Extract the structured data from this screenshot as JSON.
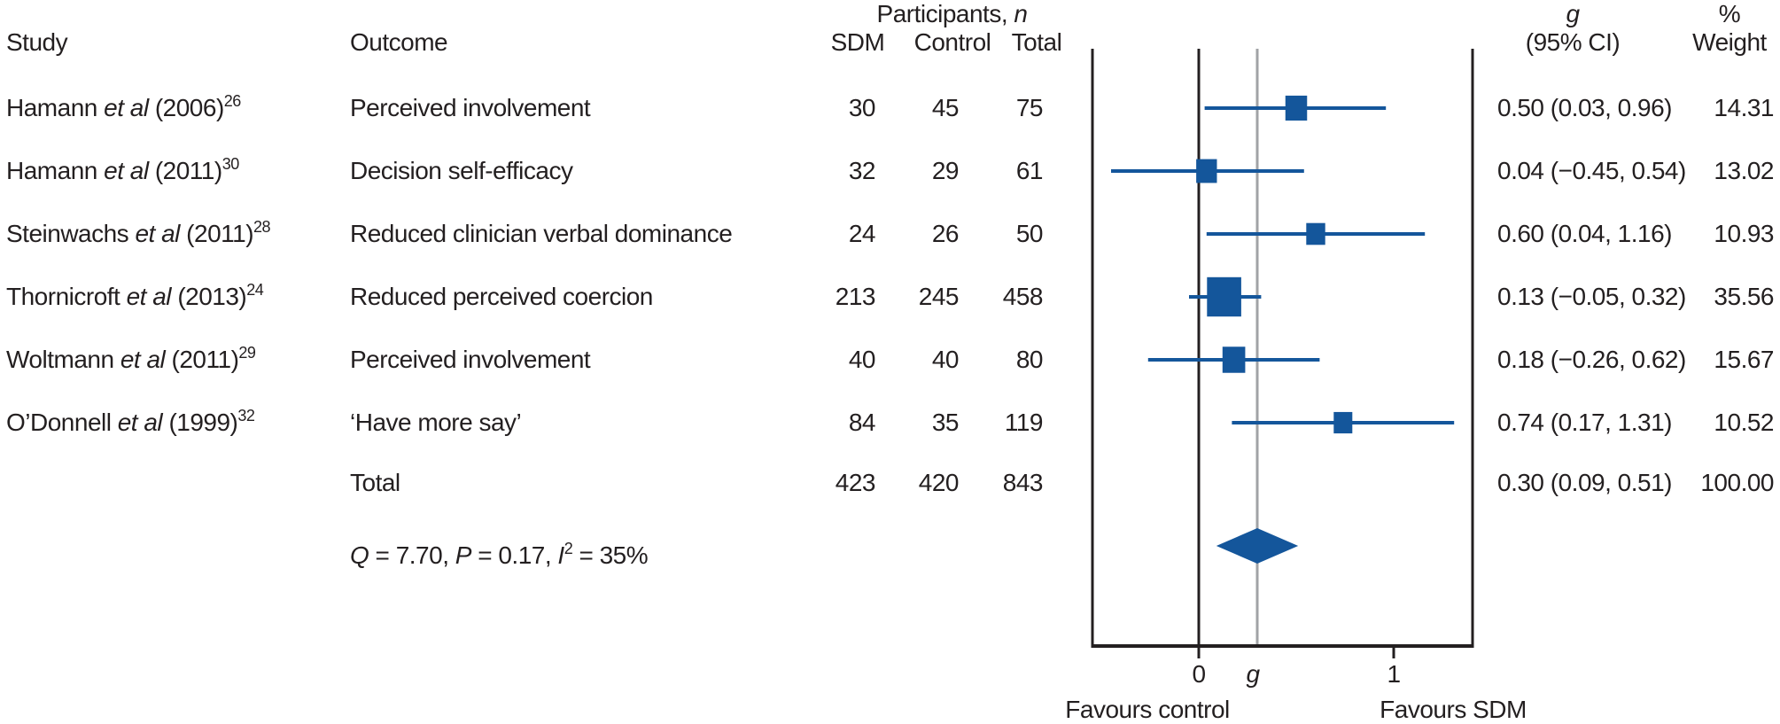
{
  "colors": {
    "text": "#231f20",
    "blue": "#14569b",
    "black_line": "#231f20",
    "gray_line": "#a1a3a6"
  },
  "headers": {
    "study": "Study",
    "outcome": "Outcome",
    "participants_prefix": "Participants, ",
    "participants_n": "n",
    "sdm": "SDM",
    "control": "Control",
    "total": "Total",
    "g": "g",
    "ci": "(95% CI)",
    "pct": "%",
    "weight": "Weight"
  },
  "rows": [
    {
      "author": "Hamann",
      "etal": " et al ",
      "year": "(2006)",
      "ref": "26",
      "outcome": "Perceived involvement",
      "sdm": "30",
      "control": "45",
      "total": "75",
      "g_ci": "0.50 (0.03, 0.96)",
      "weight": "14.31"
    },
    {
      "author": "Hamann",
      "etal": " et al ",
      "year": "(2011)",
      "ref": "30",
      "outcome": "Decision self-efficacy",
      "sdm": "32",
      "control": "29",
      "total": "61",
      "g_ci": "0.04 (−0.45, 0.54)",
      "weight": "13.02"
    },
    {
      "author": "Steinwachs",
      "etal": " et al ",
      "year": "(2011)",
      "ref": "28",
      "outcome": "Reduced clinician verbal dominance",
      "sdm": "24",
      "control": "26",
      "total": "50",
      "g_ci": "0.60 (0.04, 1.16)",
      "weight": "10.93"
    },
    {
      "author": "Thornicroft",
      "etal": " et al ",
      "year": "(2013)",
      "ref": "24",
      "outcome": "Reduced perceived coercion",
      "sdm": "213",
      "control": "245",
      "total": "458",
      "g_ci": "0.13 (−0.05, 0.32)",
      "weight": "35.56"
    },
    {
      "author": "Woltmann",
      "etal": " et al ",
      "year": "(2011)",
      "ref": "29",
      "outcome": "Perceived involvement",
      "sdm": "40",
      "control": "40",
      "total": "80",
      "g_ci": "0.18 (−0.26, 0.62)",
      "weight": "15.67"
    },
    {
      "author": "O’Donnell",
      "etal": " et al ",
      "year": "(1999)",
      "ref": "32",
      "outcome": "‘Have more say’",
      "sdm": "84",
      "control": "35",
      "total": "119",
      "g_ci": "0.74 (0.17, 1.31)",
      "weight": "10.52"
    }
  ],
  "total_row": {
    "label": "Total",
    "sdm": "423",
    "control": "420",
    "total": "843",
    "g_ci": "0.30 (0.09, 0.51)",
    "weight": "100.00"
  },
  "stats": {
    "q_label": "Q",
    "q_rest": " = 7.70, ",
    "p_label": "P",
    "p_rest": " = 0.17, ",
    "i_label": "I",
    "i_sup": "2",
    "i_rest": " = 35%"
  },
  "chart_data": {
    "type": "forest",
    "effect_measure": "Hedges g",
    "axis": {
      "zero_label": "0",
      "g_label": "g",
      "one_label": "1",
      "favours_left": "Favours control",
      "favours_right": "Favours SDM",
      "ticks": [
        0,
        1
      ],
      "xlim": [
        -0.545,
        1.405
      ],
      "pooled_reference_line": 0.3
    },
    "studies": [
      {
        "label": "Hamann et al (2006)",
        "outcome": "Perceived involvement",
        "g": 0.5,
        "ci_low": 0.03,
        "ci_high": 0.96,
        "weight_pct": 14.31
      },
      {
        "label": "Hamann et al (2011)",
        "outcome": "Decision self-efficacy",
        "g": 0.04,
        "ci_low": -0.45,
        "ci_high": 0.54,
        "weight_pct": 13.02
      },
      {
        "label": "Steinwachs et al (2011)",
        "outcome": "Reduced clinician verbal dominance",
        "g": 0.6,
        "ci_low": 0.04,
        "ci_high": 1.16,
        "weight_pct": 10.93
      },
      {
        "label": "Thornicroft et al (2013)",
        "outcome": "Reduced perceived coercion",
        "g": 0.13,
        "ci_low": -0.05,
        "ci_high": 0.32,
        "weight_pct": 35.56
      },
      {
        "label": "Woltmann et al (2011)",
        "outcome": "Perceived involvement",
        "g": 0.18,
        "ci_low": -0.26,
        "ci_high": 0.62,
        "weight_pct": 15.67
      },
      {
        "label": "O’Donnell et al (1999)",
        "outcome": "‘Have more say’",
        "g": 0.74,
        "ci_low": 0.17,
        "ci_high": 1.31,
        "weight_pct": 10.52
      }
    ],
    "pooled": {
      "g": 0.3,
      "ci_low": 0.09,
      "ci_high": 0.51,
      "weight_pct": 100.0
    },
    "heterogeneity": {
      "Q": 7.7,
      "P": 0.17,
      "I2_pct": 35
    }
  }
}
